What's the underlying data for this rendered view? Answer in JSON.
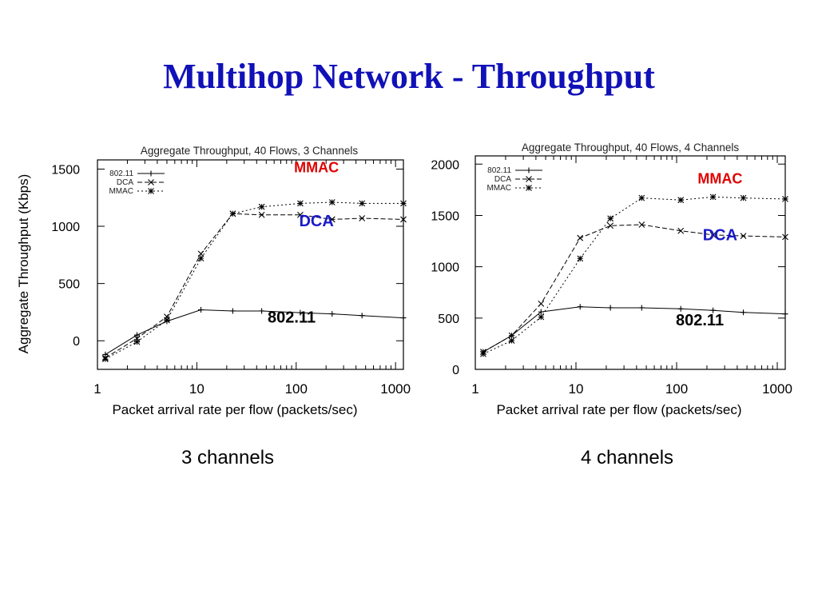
{
  "slide": {
    "title": "Multihop Network - Throughput",
    "ylabel": "Aggregate Throughput (Kbps)"
  },
  "captions": [
    "3 channels",
    "4 channels"
  ],
  "chart_data": [
    {
      "type": "line",
      "title": "Aggregate Throughput, 40 Flows, 3 Channels",
      "xlabel": "Packet arrival rate per flow (packets/sec)",
      "ylabel": "Aggregate Throughput (Kbps)",
      "xscale": "log",
      "xlim": [
        1,
        1200
      ],
      "ylim": [
        -250,
        1580
      ],
      "x_ticks": [
        1,
        10,
        100,
        1000
      ],
      "y_ticks": [
        0,
        500,
        1000,
        1500
      ],
      "legend_position": "top-left",
      "series": [
        {
          "name": "802.11",
          "marker": "+",
          "dash": "",
          "x": [
            1.2,
            2.5,
            5,
            11,
            23,
            45,
            110,
            230,
            460,
            1200
          ],
          "y": [
            -120,
            50,
            170,
            270,
            260,
            260,
            245,
            235,
            220,
            200
          ]
        },
        {
          "name": "DCA",
          "marker": "x",
          "dash": "6,3",
          "x": [
            1.2,
            2.5,
            5,
            11,
            23,
            45,
            110,
            230,
            460,
            1200
          ],
          "y": [
            -150,
            20,
            210,
            760,
            1110,
            1100,
            1100,
            1060,
            1070,
            1060
          ]
        },
        {
          "name": "MMAC",
          "marker": "*",
          "dash": "2,3",
          "x": [
            1.2,
            2.5,
            5,
            11,
            23,
            45,
            110,
            230,
            460,
            1200
          ],
          "y": [
            -160,
            -10,
            180,
            720,
            1110,
            1170,
            1200,
            1210,
            1200,
            1200
          ]
        }
      ],
      "annotations": [
        {
          "text": "MMAC",
          "x": 160,
          "y": 1470,
          "color": "#e00000"
        },
        {
          "text": "DCA",
          "x": 160,
          "y": 1000,
          "color": "#1a1ac8"
        },
        {
          "text": "802.11",
          "x": 90,
          "y": 160,
          "color": "#000000"
        }
      ]
    },
    {
      "type": "line",
      "title": "Aggregate Throughput, 40 Flows, 4 Channels",
      "xlabel": "Packet arrival rate per flow (packets/sec)",
      "ylabel": "",
      "xscale": "log",
      "xlim": [
        1,
        1200
      ],
      "ylim": [
        0,
        2080
      ],
      "x_ticks": [
        1,
        10,
        100,
        1000
      ],
      "y_ticks": [
        0,
        500,
        1000,
        1500,
        2000
      ],
      "legend_position": "top-left",
      "series": [
        {
          "name": "802.11",
          "marker": "+",
          "dash": "",
          "x": [
            1.2,
            2.3,
            4.5,
            11,
            22,
            45,
            110,
            230,
            460,
            1200
          ],
          "y": [
            170,
            330,
            560,
            610,
            600,
            600,
            590,
            575,
            555,
            540
          ]
        },
        {
          "name": "DCA",
          "marker": "x",
          "dash": "6,3",
          "x": [
            1.2,
            2.3,
            4.5,
            11,
            22,
            45,
            110,
            230,
            460,
            1200
          ],
          "y": [
            170,
            330,
            640,
            1280,
            1400,
            1410,
            1350,
            1310,
            1300,
            1290
          ]
        },
        {
          "name": "MMAC",
          "marker": "*",
          "dash": "2,3",
          "x": [
            1.2,
            2.3,
            4.5,
            11,
            22,
            45,
            110,
            230,
            460,
            1200
          ],
          "y": [
            150,
            280,
            510,
            1080,
            1470,
            1670,
            1650,
            1680,
            1670,
            1660
          ]
        }
      ],
      "annotations": [
        {
          "text": "MMAC",
          "x": 270,
          "y": 1810,
          "color": "#e00000"
        },
        {
          "text": "DCA",
          "x": 270,
          "y": 1260,
          "color": "#1a1ac8"
        },
        {
          "text": "802.11",
          "x": 170,
          "y": 430,
          "color": "#000000"
        }
      ]
    }
  ]
}
